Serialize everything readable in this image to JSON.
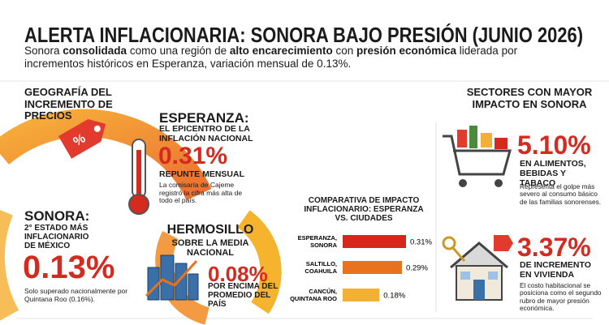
{
  "header": {
    "title": "ALERTA INFLACIONARIA: SONORA BAJO PRESIÓN (JUNIO 2026)",
    "subtitle": [
      "Sonora ",
      "consolidada",
      " como una región de ",
      "alto encarecimiento",
      " con ",
      "presión económica",
      " liderada por incrementos históricos en Esperanza, variación mensual de 0.13%."
    ]
  },
  "geography": {
    "heading": "GEOGRAFÍA DEL INCREMENTO DE PRECIOS",
    "esperanza": {
      "title": "ESPERANZA:",
      "subtitle": "EL EPICENTRO DE LA INFLACIÓN NACIONAL",
      "value": "0.31%",
      "label": "REPUNTE MENSUAL",
      "note": "La comisaría de Cajeme registró la cifra más alta de todo el país."
    },
    "sonora": {
      "title": "SONORA:",
      "subtitle": "2° ESTADO MÁS INFLACIONARIO DE MÉXICO",
      "value": "0.13%",
      "note": "Solo superado nacionalmente por Quintana Roo (0.16%)."
    },
    "hermosillo": {
      "title": "HERMOSILLO",
      "subtitle": "SOBRE LA MEDIA NACIONAL",
      "value": "0.08%",
      "label": "POR ENCIMA DEL PROMEDIO DEL PAÍS"
    }
  },
  "comparison": {
    "type": "bar",
    "title": "COMPARATIVA DE IMPACTO INFLACIONARIO: ESPERANZA VS. CIUDADES",
    "categories": [
      "ESPERANZA, SONORA",
      "SALTILLO, COAHUILA",
      "CANCÚN, QUINTANA ROO"
    ],
    "values": [
      0.31,
      0.29,
      0.18
    ],
    "value_labels": [
      "0.31%",
      "0.29%",
      "0.18%"
    ],
    "colors": [
      "#d9261c",
      "#e8731c",
      "#f2b134"
    ]
  },
  "sectors": {
    "heading": "SECTORES CON MAYOR IMPACTO EN SONORA",
    "food": {
      "value": "5.10%",
      "label": "EN ALIMENTOS, BEBIDAS Y TABACO",
      "note": "Representa el golpe más severo al consumo básico de las familias sonorenses."
    },
    "housing": {
      "value": "3.37%",
      "label": "DE INCREMENTO EN VIVIENDA",
      "note": "El costo habitacional se posiciona como el segundo rubro de mayor presión económica."
    }
  }
}
